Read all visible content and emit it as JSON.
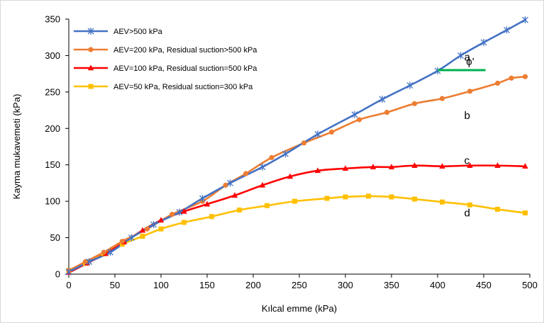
{
  "chart_data": {
    "type": "line",
    "xlabel": "Kılcal emme (kPa)",
    "ylabel": "Kayma mukavemeti (kPa)",
    "xlim": [
      0,
      500
    ],
    "ylim": [
      0,
      350
    ],
    "xticks": [
      0,
      50,
      100,
      150,
      200,
      250,
      300,
      350,
      400,
      450,
      500
    ],
    "yticks": [
      0,
      50,
      100,
      150,
      200,
      250,
      300,
      350
    ],
    "grid": false,
    "legend_position": "top-left",
    "series": [
      {
        "name": "AEV>500 kPa",
        "color": "#4472C4",
        "marker": "star",
        "points": [
          [
            0,
            3
          ],
          [
            22,
            17
          ],
          [
            45,
            30
          ],
          [
            68,
            50
          ],
          [
            92,
            68
          ],
          [
            120,
            85
          ],
          [
            145,
            104
          ],
          [
            175,
            125
          ],
          [
            210,
            147
          ],
          [
            235,
            165
          ],
          [
            270,
            192
          ],
          [
            310,
            219
          ],
          [
            340,
            240
          ],
          [
            370,
            259
          ],
          [
            400,
            279
          ],
          [
            425,
            300
          ],
          [
            450,
            318
          ],
          [
            475,
            335
          ],
          [
            495,
            349
          ]
        ],
        "curve_label": "a"
      },
      {
        "name": "AEV=200 kPa, Residual suction>500 kPa",
        "color": "#ED7D31",
        "marker": "circle",
        "points": [
          [
            0,
            5
          ],
          [
            18,
            17
          ],
          [
            38,
            30
          ],
          [
            58,
            45
          ],
          [
            85,
            62
          ],
          [
            112,
            82
          ],
          [
            145,
            100
          ],
          [
            170,
            122
          ],
          [
            192,
            138
          ],
          [
            220,
            160
          ],
          [
            255,
            180
          ],
          [
            285,
            195
          ],
          [
            315,
            212
          ],
          [
            345,
            222
          ],
          [
            375,
            234
          ],
          [
            405,
            241
          ],
          [
            435,
            251
          ],
          [
            465,
            262
          ],
          [
            480,
            269
          ],
          [
            495,
            271
          ]
        ],
        "curve_label": "b"
      },
      {
        "name": "AEV=100 kPa, Residual suction=500 kPa",
        "color": "#FF0000",
        "marker": "triangle",
        "points": [
          [
            0,
            2
          ],
          [
            20,
            15
          ],
          [
            40,
            28
          ],
          [
            60,
            44
          ],
          [
            80,
            60
          ],
          [
            100,
            74
          ],
          [
            125,
            86
          ],
          [
            150,
            96
          ],
          [
            180,
            108
          ],
          [
            210,
            122
          ],
          [
            240,
            134
          ],
          [
            270,
            142
          ],
          [
            300,
            145
          ],
          [
            330,
            147
          ],
          [
            350,
            147
          ],
          [
            375,
            149
          ],
          [
            405,
            148
          ],
          [
            435,
            149
          ],
          [
            465,
            149
          ],
          [
            495,
            148
          ]
        ],
        "curve_label": "c"
      },
      {
        "name": "AEV=50 kPa, Residual suction=300 kPa",
        "color": "#FFC000",
        "marker": "square",
        "points": [
          [
            0,
            5
          ],
          [
            18,
            15
          ],
          [
            38,
            28
          ],
          [
            58,
            41
          ],
          [
            80,
            52
          ],
          [
            100,
            62
          ],
          [
            125,
            71
          ],
          [
            155,
            79
          ],
          [
            185,
            88
          ],
          [
            215,
            94
          ],
          [
            245,
            100
          ],
          [
            280,
            104
          ],
          [
            300,
            106
          ],
          [
            325,
            107
          ],
          [
            350,
            106
          ],
          [
            375,
            103
          ],
          [
            405,
            99
          ],
          [
            435,
            95
          ],
          [
            465,
            89
          ],
          [
            495,
            84
          ]
        ],
        "curve_label": "d"
      }
    ],
    "annotation": {
      "text": "ϕ'",
      "color": "#00B050"
    }
  }
}
